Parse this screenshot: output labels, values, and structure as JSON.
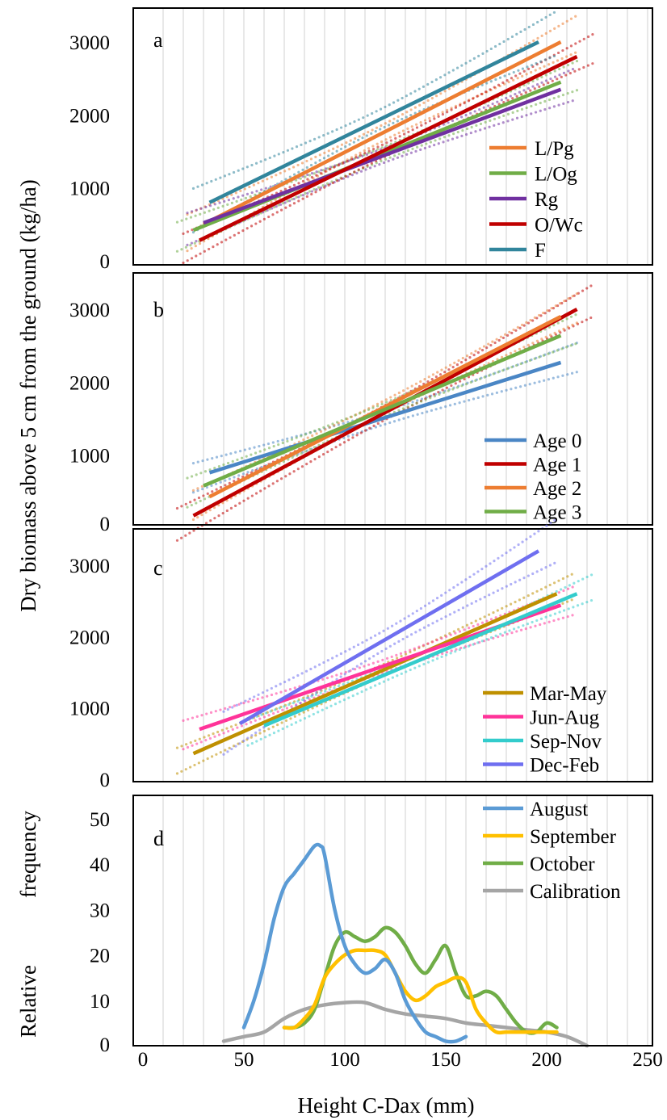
{
  "figure": {
    "ylabel": "Dry biomass above 5 cm from the ground (kg/ha)",
    "xlabel": "Height C-Dax (mm)",
    "ylabel_d_top": "frequency",
    "ylabel_d_bottom": "Relative",
    "x_ticks": [
      "0",
      "50",
      "100",
      "150",
      "200",
      "250"
    ],
    "panels": [
      {
        "letter": "a",
        "y_ticks": [
          "0",
          "1000",
          "2000",
          "3000"
        ]
      },
      {
        "letter": "b",
        "y_ticks": [
          "0",
          "1000",
          "2000",
          "3000"
        ]
      },
      {
        "letter": "c",
        "y_ticks": [
          "0",
          "1000",
          "2000",
          "3000"
        ]
      },
      {
        "letter": "d",
        "y_ticks": [
          "0",
          "10",
          "20",
          "30",
          "40",
          "50"
        ]
      }
    ]
  },
  "chart_data": [
    {
      "panel": "a",
      "type": "line",
      "xlim": [
        0,
        250
      ],
      "ylim": [
        0,
        3000
      ],
      "grid": "vertical",
      "legend_position": "right",
      "confidence_bands": "dotted",
      "series": [
        {
          "name": "L/Pg",
          "color": "#ED7D31",
          "x": [
            30,
            207
          ],
          "y": [
            500,
            3000
          ],
          "ci_halfwidth": 250
        },
        {
          "name": "L/Og",
          "color": "#70AD47",
          "x": [
            25,
            207
          ],
          "y": [
            420,
            2450
          ],
          "ci_halfwidth": 200
        },
        {
          "name": "Rg",
          "color": "#7030A0",
          "x": [
            30,
            207
          ],
          "y": [
            520,
            2350
          ],
          "ci_halfwidth": 220
        },
        {
          "name": "O/Wc",
          "color": "#C00000",
          "x": [
            28,
            215
          ],
          "y": [
            280,
            2800
          ],
          "ci_halfwidth": 200
        },
        {
          "name": "F",
          "color": "#31859C",
          "x": [
            33,
            196
          ],
          "y": [
            800,
            3000
          ],
          "ci_halfwidth": 300
        }
      ]
    },
    {
      "panel": "b",
      "type": "line",
      "xlim": [
        0,
        250
      ],
      "ylim": [
        0,
        3000
      ],
      "grid": "vertical",
      "legend_position": "right",
      "confidence_bands": "dotted",
      "series": [
        {
          "name": "Age 0",
          "color": "#4A86C5",
          "x": [
            33,
            207
          ],
          "y": [
            760,
            2270
          ],
          "ci_halfwidth": 200
        },
        {
          "name": "Age 1",
          "color": "#C00000",
          "x": [
            25,
            215
          ],
          "y": [
            170,
            3000
          ],
          "ci_halfwidth": 220
        },
        {
          "name": "Age 2",
          "color": "#ED7D31",
          "x": [
            33,
            207
          ],
          "y": [
            430,
            2900
          ],
          "ci_halfwidth": 200
        },
        {
          "name": "Age 3",
          "color": "#70AD47",
          "x": [
            30,
            207
          ],
          "y": [
            580,
            2640
          ],
          "ci_halfwidth": 200
        }
      ]
    },
    {
      "panel": "c",
      "type": "line",
      "xlim": [
        0,
        250
      ],
      "ylim": [
        0,
        3000
      ],
      "grid": "vertical",
      "legend_position": "right",
      "confidence_bands": "dotted",
      "series": [
        {
          "name": "Mar-May",
          "color": "#BF9000",
          "x": [
            25,
            205
          ],
          "y": [
            360,
            2600
          ],
          "ci_halfwidth": 180
        },
        {
          "name": "Jun-Aug",
          "color": "#FF3399",
          "x": [
            28,
            207
          ],
          "y": [
            700,
            2440
          ],
          "ci_halfwidth": 200
        },
        {
          "name": "Sep-Nov",
          "color": "#33CCCC",
          "x": [
            60,
            215
          ],
          "y": [
            750,
            2600
          ],
          "ci_halfwidth": 180
        },
        {
          "name": "Dec-Feb",
          "color": "#6F6FF0",
          "x": [
            48,
            196
          ],
          "y": [
            780,
            3200
          ],
          "ci_halfwidth": 300
        }
      ]
    },
    {
      "panel": "d",
      "type": "line",
      "xlim": [
        0,
        250
      ],
      "ylim": [
        0,
        50
      ],
      "grid": "vertical",
      "legend_position": "top-right",
      "series": [
        {
          "name": "August",
          "color": "#5B9BD5",
          "x": [
            50,
            55,
            60,
            65,
            70,
            75,
            80,
            85,
            88,
            90,
            95,
            100,
            105,
            110,
            115,
            120,
            125,
            130,
            135,
            140,
            145,
            150,
            155,
            160
          ],
          "y": [
            4,
            10,
            18,
            28,
            35,
            38,
            41,
            44,
            44,
            42,
            30,
            22,
            18,
            16,
            17,
            19,
            16,
            10,
            6,
            3,
            2,
            1,
            1,
            2
          ]
        },
        {
          "name": "September",
          "color": "#FFC000",
          "x": [
            70,
            75,
            80,
            85,
            90,
            95,
            100,
            105,
            110,
            115,
            120,
            125,
            130,
            135,
            140,
            145,
            150,
            155,
            160,
            165,
            170,
            175,
            180,
            185,
            190,
            195,
            200,
            205
          ],
          "y": [
            4,
            4,
            6,
            9,
            15,
            18,
            20,
            21,
            21,
            21,
            20,
            16,
            12,
            10,
            11,
            13,
            14,
            15,
            14,
            8,
            5,
            3,
            3,
            3,
            3,
            3,
            3,
            3
          ]
        },
        {
          "name": "October",
          "color": "#70AD47",
          "x": [
            70,
            75,
            80,
            85,
            90,
            95,
            100,
            105,
            110,
            115,
            120,
            125,
            130,
            135,
            140,
            145,
            150,
            155,
            160,
            165,
            170,
            175,
            180,
            185,
            190,
            195,
            200,
            205
          ],
          "y": [
            4,
            4,
            5,
            8,
            15,
            22,
            25,
            24,
            23,
            24,
            26,
            25,
            22,
            18,
            16,
            19,
            22,
            16,
            11,
            11,
            12,
            11,
            8,
            5,
            3,
            3,
            5,
            4
          ]
        },
        {
          "name": "Calibration",
          "color": "#A5A5A5",
          "x": [
            40,
            50,
            60,
            70,
            80,
            90,
            100,
            110,
            120,
            130,
            140,
            150,
            160,
            170,
            180,
            190,
            200,
            210,
            220
          ],
          "y": [
            1,
            2,
            3,
            6,
            8,
            9,
            9.5,
            9.5,
            8,
            7,
            6.5,
            6,
            5,
            4.5,
            4,
            3.5,
            3,
            2,
            0
          ]
        }
      ]
    }
  ]
}
